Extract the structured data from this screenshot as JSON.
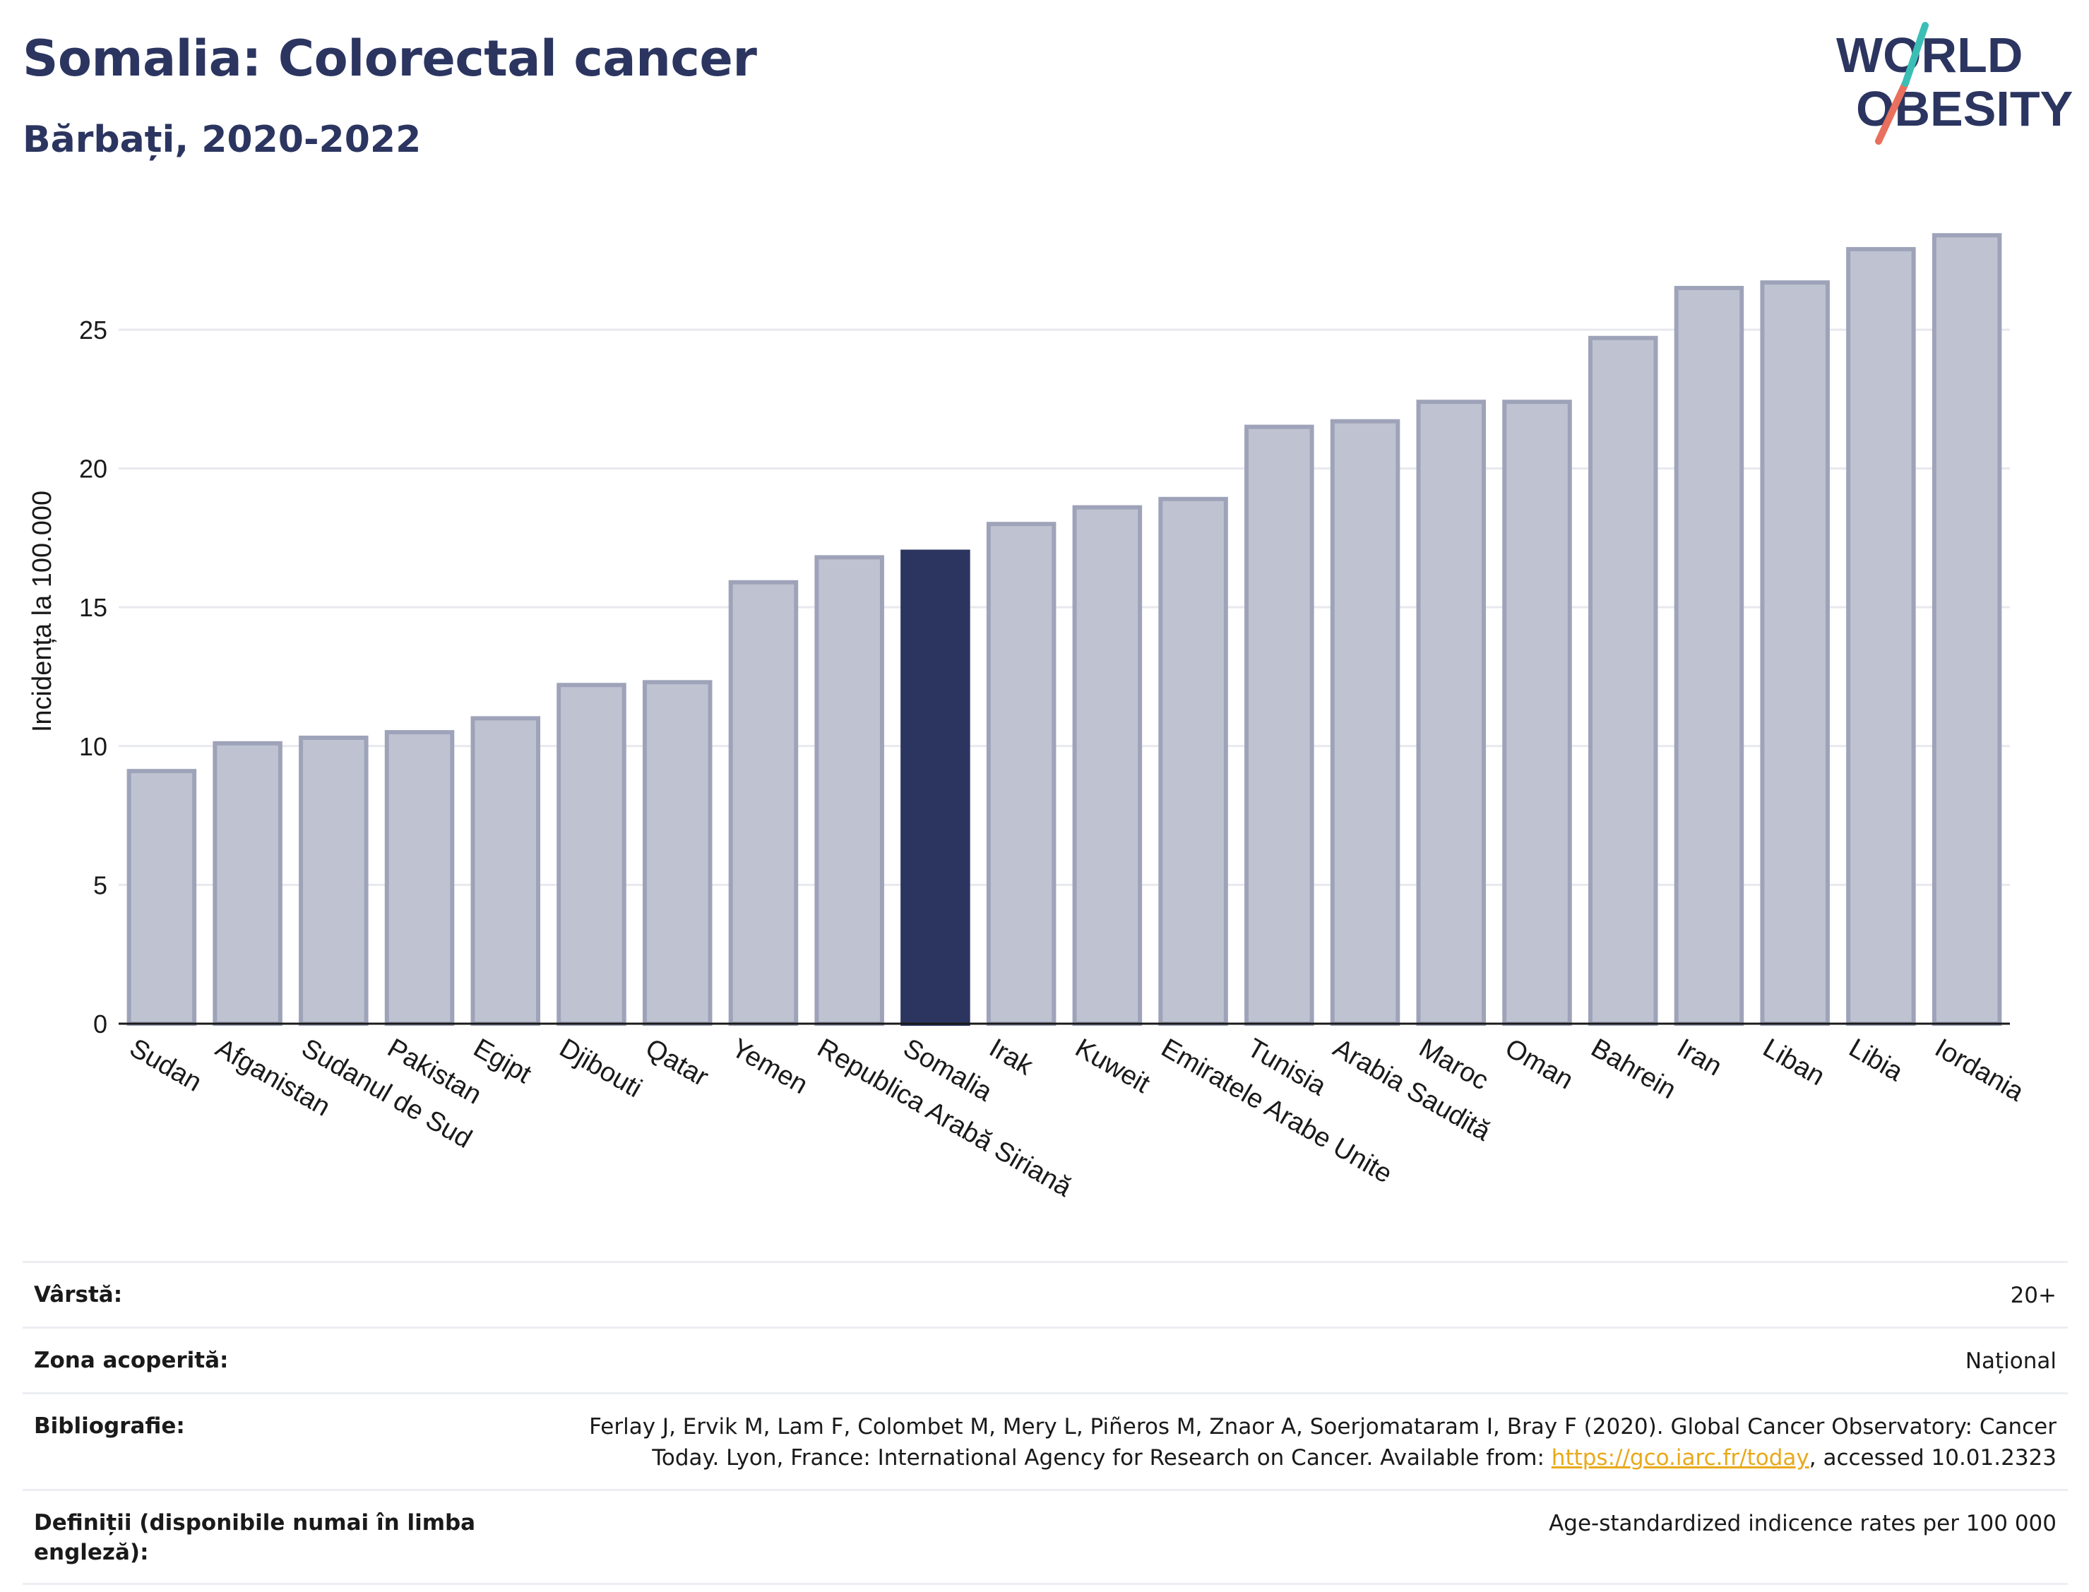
{
  "header": {
    "title": "Somalia: Colorectal cancer",
    "subtitle": "Bărbați, 2020-2022"
  },
  "logo": {
    "line1": "WORLD",
    "line2": "OBESITY",
    "colors": {
      "text": "#2b3560",
      "slash_teal": "#3bbfb5",
      "slash_coral": "#e8705c"
    }
  },
  "colors": {
    "bar": "#bfc3d1",
    "bar_outline": "#9ea3b9",
    "highlight": "#2b3560",
    "grid": "#e8e9ee",
    "axis": "#1a1a1a"
  },
  "chart_data": {
    "type": "bar",
    "ylabel": "Incidența la 100.000",
    "ylim": [
      0,
      29.5
    ],
    "yticks": [
      0,
      5,
      10,
      15,
      20,
      25
    ],
    "grid": true,
    "highlight": "Somalia",
    "categories": [
      "Sudan",
      "Afganistan",
      "Sudanul de Sud",
      "Pakistan",
      "Egipt",
      "Djibouti",
      "Qatar",
      "Yemen",
      "Republica Arabă Siriană",
      "Somalia",
      "Irak",
      "Kuweit",
      "Emiratele Arabe Unite",
      "Tunisia",
      "Arabia Saudită",
      "Maroc",
      "Oman",
      "Bahrein",
      "Iran",
      "Liban",
      "Libia",
      "Iordania"
    ],
    "values": [
      9.1,
      10.1,
      10.3,
      10.5,
      11.0,
      12.2,
      12.3,
      15.9,
      16.8,
      17.0,
      18.0,
      18.6,
      18.9,
      21.5,
      21.7,
      22.4,
      22.4,
      24.7,
      26.5,
      26.7,
      27.9,
      28.4
    ]
  },
  "info_table": [
    {
      "label": "Vârstă:",
      "value": "20+"
    },
    {
      "label": "Zona acoperită:",
      "value": "Național"
    },
    {
      "label": "Bibliografie:",
      "value_line1": "Ferlay J, Ervik M, Lam F, Colombet M, Mery L, Piñeros M, Znaor A, Soerjomataram I, Bray F (2020). Global Cancer Observatory: Cancer",
      "value_line2_pre": "Today. Lyon, France: International Agency for Research on Cancer. Available from: ",
      "value_link": "https://gco.iarc.fr/today",
      "value_line2_post": ", accessed 10.01.2323"
    },
    {
      "label": "Definiții (disponibile numai în limba engleză):",
      "value": "Age-standardized indicence rates per 100 000"
    }
  ]
}
